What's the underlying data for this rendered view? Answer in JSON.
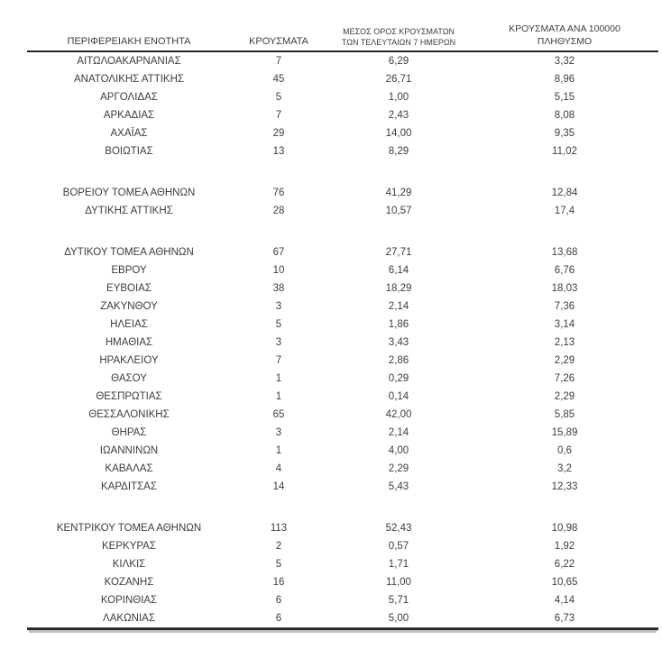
{
  "page": {
    "background_color": "#ffffff",
    "text_color": "#3d3d3d",
    "rule_color": "#2b2b2b"
  },
  "table": {
    "columns": [
      {
        "label": "ΠΕΡΙΦΕΡΕΙΑΚΗ ΕΝΟΤΗΤΑ"
      },
      {
        "label": "ΚΡΟΥΣΜΑΤΑ"
      },
      {
        "label_lines": [
          "ΜΕΣΟΣ ΟΡΟΣ ΚΡΟΥΣΜΑΤΩΝ",
          "ΤΩΝ ΤΕΛΕΥΤΑΙΩΝ 7 ΗΜΕΡΩΝ"
        ]
      },
      {
        "label_lines": [
          "ΚΡΟΥΣΜΑΤΑ ΑΝΑ 100000",
          "ΠΛΗΘΥΣΜΟ"
        ]
      }
    ],
    "groups": [
      {
        "rows": [
          {
            "region": "ΑΙΤΩΛΟΑΚΑΡΝΑΝΙΑΣ",
            "cases": "7",
            "avg_7day": "6,29",
            "per_100k": "3,32"
          },
          {
            "region": "ΑΝΑΤΟΛΙΚΗΣ ΑΤΤΙΚΗΣ",
            "cases": "45",
            "avg_7day": "26,71",
            "per_100k": "8,96"
          },
          {
            "region": "ΑΡΓΟΛΙΔΑΣ",
            "cases": "5",
            "avg_7day": "1,00",
            "per_100k": "5,15"
          },
          {
            "region": "ΑΡΚΑΔΙΑΣ",
            "cases": "7",
            "avg_7day": "2,43",
            "per_100k": "8,08"
          },
          {
            "region": "ΑΧΑΪΑΣ",
            "cases": "29",
            "avg_7day": "14,00",
            "per_100k": "9,35"
          },
          {
            "region": "ΒΟΙΩΤΙΑΣ",
            "cases": "13",
            "avg_7day": "8,29",
            "per_100k": "11,02"
          }
        ]
      },
      {
        "rows": [
          {
            "region": "ΒΟΡΕΙΟΥ ΤΟΜΕΑ ΑΘΗΝΩΝ",
            "cases": "76",
            "avg_7day": "41,29",
            "per_100k": "12,84"
          },
          {
            "region": "ΔΥΤΙΚΗΣ ΑΤΤΙΚΗΣ",
            "cases": "28",
            "avg_7day": "10,57",
            "per_100k": "17,4"
          }
        ]
      },
      {
        "rows": [
          {
            "region": "ΔΥΤΙΚΟΥ ΤΟΜΕΑ ΑΘΗΝΩΝ",
            "cases": "67",
            "avg_7day": "27,71",
            "per_100k": "13,68"
          },
          {
            "region": "ΕΒΡΟΥ",
            "cases": "10",
            "avg_7day": "6,14",
            "per_100k": "6,76"
          },
          {
            "region": "ΕΥΒΟΙΑΣ",
            "cases": "38",
            "avg_7day": "18,29",
            "per_100k": "18,03"
          },
          {
            "region": "ΖΑΚΥΝΘΟΥ",
            "cases": "3",
            "avg_7day": "2,14",
            "per_100k": "7,36"
          },
          {
            "region": "ΗΛΕΙΑΣ",
            "cases": "5",
            "avg_7day": "1,86",
            "per_100k": "3,14"
          },
          {
            "region": "ΗΜΑΘΙΑΣ",
            "cases": "3",
            "avg_7day": "3,43",
            "per_100k": "2,13"
          },
          {
            "region": "ΗΡΑΚΛΕΙΟΥ",
            "cases": "7",
            "avg_7day": "2,86",
            "per_100k": "2,29"
          },
          {
            "region": "ΘΑΣΟΥ",
            "cases": "1",
            "avg_7day": "0,29",
            "per_100k": "7,26"
          },
          {
            "region": "ΘΕΣΠΡΩΤΙΑΣ",
            "cases": "1",
            "avg_7day": "0,14",
            "per_100k": "2,29"
          },
          {
            "region": "ΘΕΣΣΑΛΟΝΙΚΗΣ",
            "cases": "65",
            "avg_7day": "42,00",
            "per_100k": "5,85"
          },
          {
            "region": "ΘΗΡΑΣ",
            "cases": "3",
            "avg_7day": "2,14",
            "per_100k": "15,89"
          },
          {
            "region": "ΙΩΑΝΝΙΝΩΝ",
            "cases": "1",
            "avg_7day": "4,00",
            "per_100k": "0,6"
          },
          {
            "region": "ΚΑΒΑΛΑΣ",
            "cases": "4",
            "avg_7day": "2,29",
            "per_100k": "3,2"
          },
          {
            "region": "ΚΑΡΔΙΤΣΑΣ",
            "cases": "14",
            "avg_7day": "5,43",
            "per_100k": "12,33"
          }
        ]
      },
      {
        "rows": [
          {
            "region": "ΚΕΝΤΡΙΚΟΥ ΤΟΜΕΑ ΑΘΗΝΩΝ",
            "cases": "113",
            "avg_7day": "52,43",
            "per_100k": "10,98"
          },
          {
            "region": "ΚΕΡΚΥΡΑΣ",
            "cases": "2",
            "avg_7day": "0,57",
            "per_100k": "1,92"
          },
          {
            "region": "ΚΙΛΚΙΣ",
            "cases": "5",
            "avg_7day": "1,71",
            "per_100k": "6,22"
          },
          {
            "region": "ΚΟΖΑΝΗΣ",
            "cases": "16",
            "avg_7day": "11,00",
            "per_100k": "10,65"
          },
          {
            "region": "ΚΟΡΙΝΘΙΑΣ",
            "cases": "6",
            "avg_7day": "5,71",
            "per_100k": "4,14"
          },
          {
            "region": "ΛΑΚΩΝΙΑΣ",
            "cases": "6",
            "avg_7day": "5,00",
            "per_100k": "6,73"
          }
        ]
      }
    ]
  }
}
